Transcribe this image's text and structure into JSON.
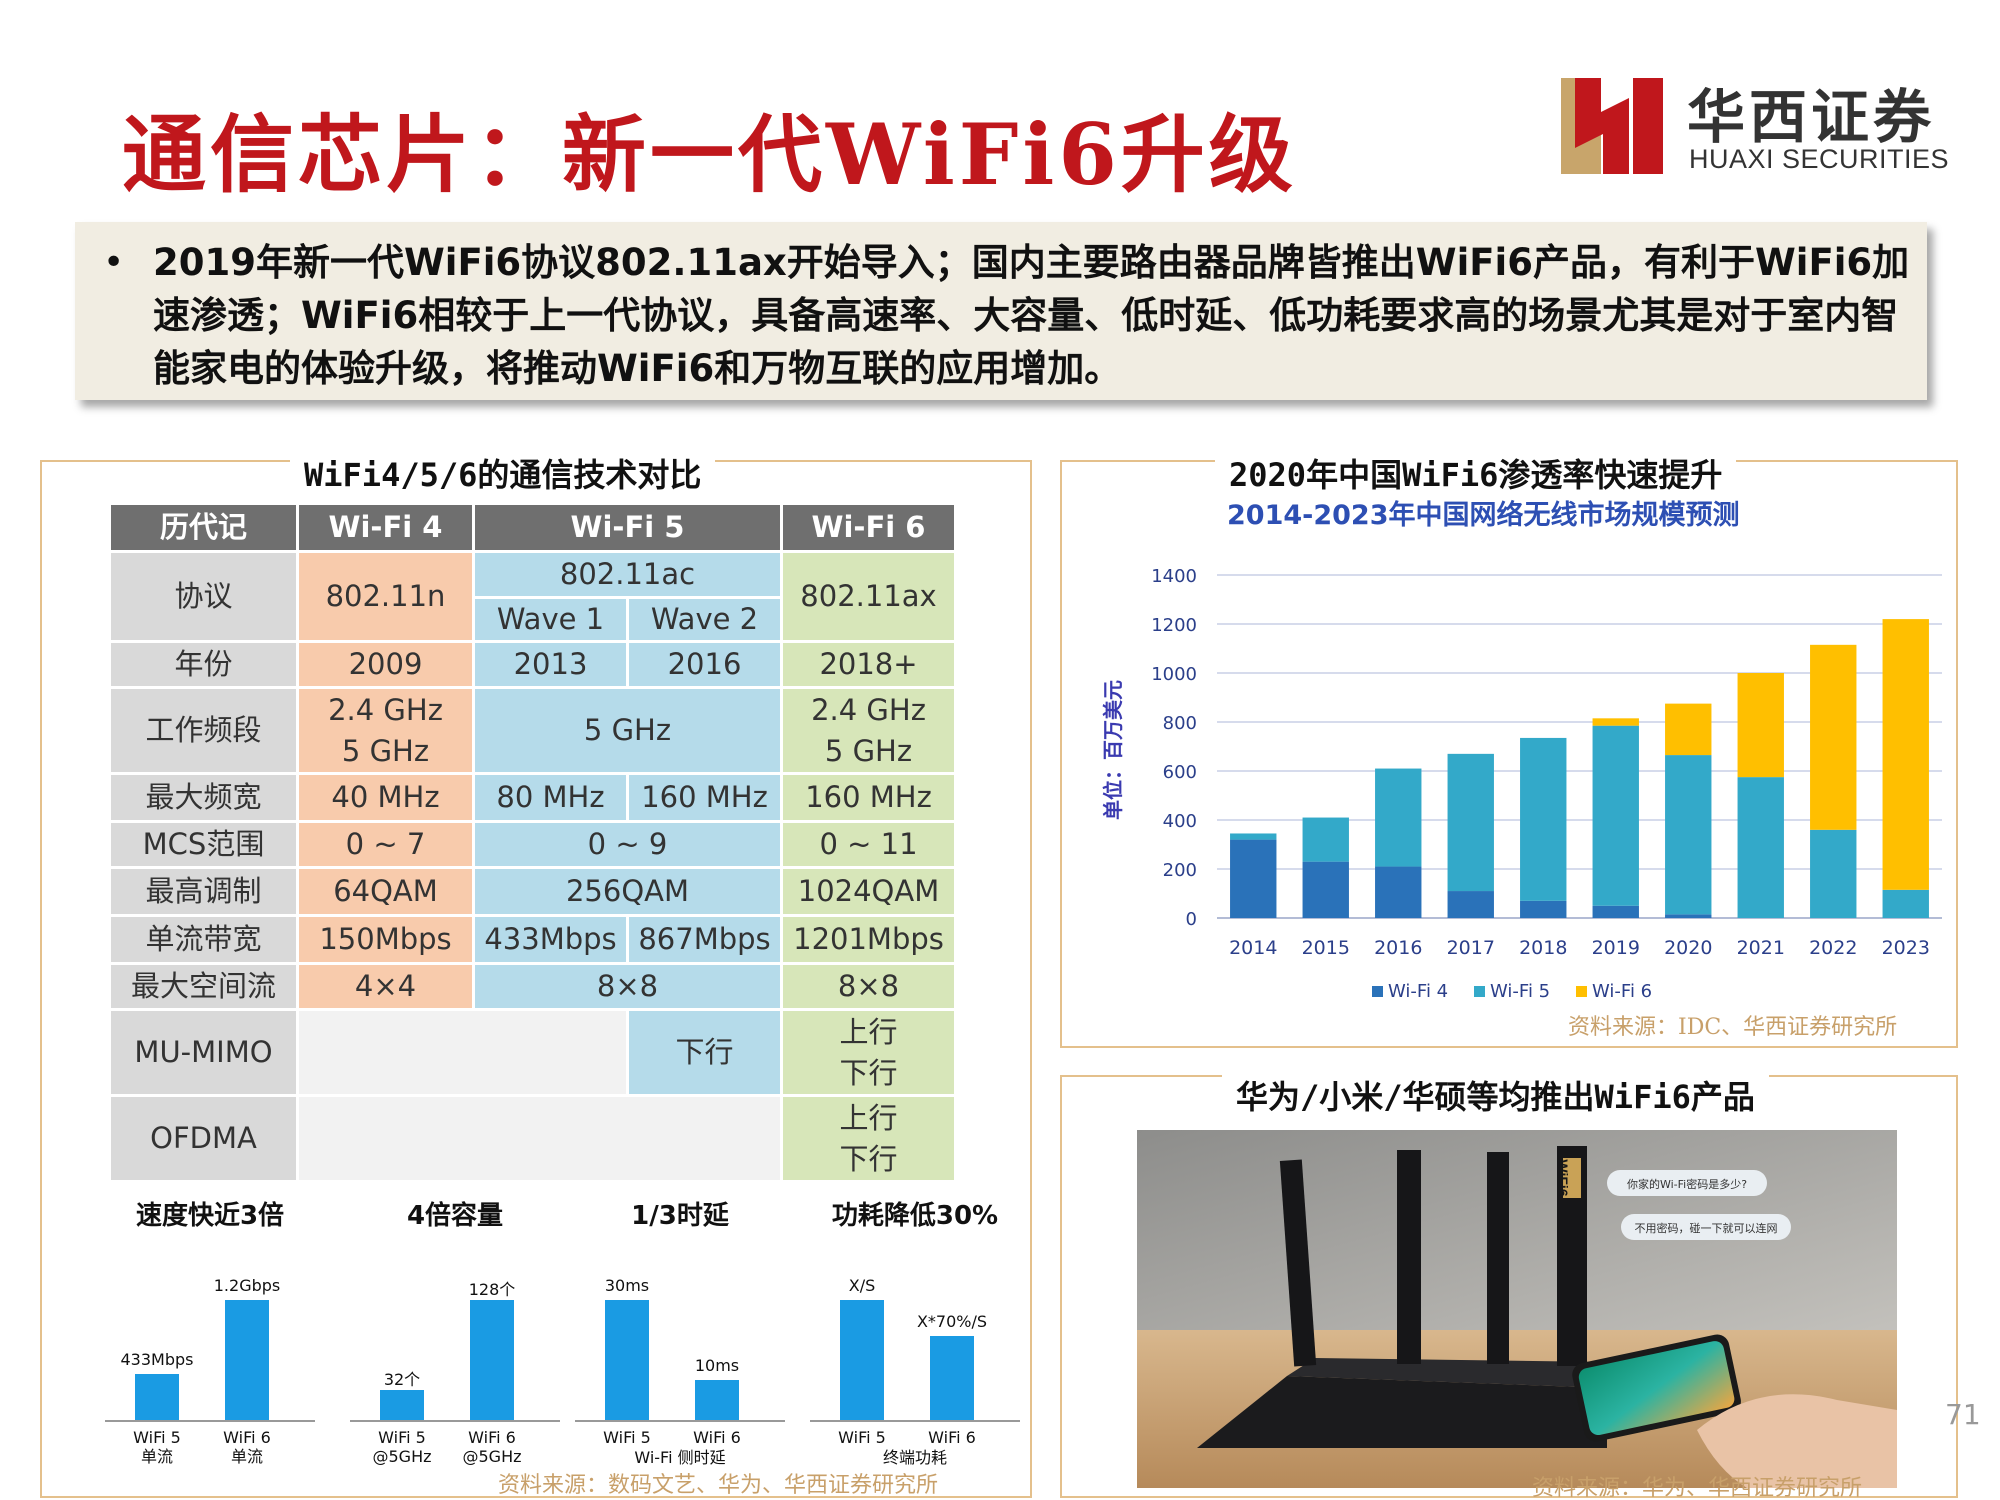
{
  "title": "通信芯片：新一代WiFi6升级",
  "logo": {
    "cn": "华西证券",
    "en": "HUAXI SECURITIES"
  },
  "summary": "2019年新一代WiFi6协议802.11ax开始导入；国内主要路由器品牌皆推出WiFi6产品，有利于WiFi6加速渗透；WiFi6相较于上一代协议，具备高速率、大容量、低时延、低功耗要求高的场景尤其是对于室内智能家电的体验升级，将推动WiFi6和万物互联的应用增加。",
  "left_panel": {
    "title": "WiFi4/5/6的通信技术对比",
    "table": {
      "h_gen": "历代记",
      "h_w4": "Wi-Fi 4",
      "h_w5": "Wi-Fi 5",
      "h_w6": "Wi-Fi 6",
      "r_proto": "协议",
      "proto_w4": "802.11n",
      "proto_w5": "802.11ac",
      "proto_w6": "802.11ax",
      "wave1": "Wave 1",
      "wave2": "Wave 2",
      "r_year": "年份",
      "year_w4": "2009",
      "year_w5a": "2013",
      "year_w5b": "2016",
      "year_w6": "2018+",
      "r_band": "工作频段",
      "band_24": "2.4 GHz",
      "band_5": "5 GHz",
      "band_w5": "5 GHz",
      "r_bw": "最大频宽",
      "bw_w4": "40 MHz",
      "bw_w5a": "80 MHz",
      "bw_w5b": "160 MHz",
      "bw_w6": "160 MHz",
      "r_mcs": "MCS范围",
      "mcs_w4": "0 ~ 7",
      "mcs_w5": "0 ~ 9",
      "mcs_w6": "0 ~ 11",
      "r_mod": "最高调制",
      "mod_w4": "64QAM",
      "mod_w5": "256QAM",
      "mod_w6": "1024QAM",
      "r_rate": "单流带宽",
      "rate_w4": "150Mbps",
      "rate_w5a": "433Mbps",
      "rate_w5b": "867Mbps",
      "rate_w6": "1201Mbps",
      "r_ss": "最大空间流",
      "ss_w4": "4×4",
      "ss_w5": "8×8",
      "ss_w6": "8×8",
      "r_mimo": "MU-MIMO",
      "down": "下行",
      "up": "上行",
      "r_ofdma": "OFDMA"
    },
    "minis": [
      {
        "title": "速度快近3倍",
        "left_val": "433Mbps",
        "right_val": "1.2Gbps",
        "left_label": "WiFi 5\n单流",
        "right_label": "WiFi 6\n单流",
        "left_frac": 0.38,
        "right_frac": 1.0
      },
      {
        "title": "4倍容量",
        "left_val": "32个",
        "right_val": "128个",
        "left_label": "WiFi 5\n@5GHz",
        "right_label": "WiFi 6\n@5GHz",
        "left_frac": 0.25,
        "right_frac": 1.0
      },
      {
        "title": "1/3时延",
        "left_val": "30ms",
        "right_val": "10ms",
        "left_label": "WiFi 5",
        "right_label": "WiFi 6",
        "left_frac": 1.0,
        "right_frac": 0.33,
        "sub_label": "Wi-Fi 侧时延"
      },
      {
        "title": "功耗降低30%",
        "left_val": "X/S",
        "right_val": "X*70%/S",
        "left_label": "WiFi 5",
        "right_label": "WiFi 6",
        "left_frac": 1.0,
        "right_frac": 0.7,
        "sub_label": "终端功耗"
      }
    ],
    "source": "资料来源：数码文艺、华为、华西证券研究所"
  },
  "right_top": {
    "title": "2020年中国WiFi6渗透率快速提升",
    "source": "资料来源：IDC、华西证券研究所"
  },
  "chart_data": {
    "type": "bar",
    "stacked": true,
    "title": "2014-2023年中国网络无线市场规模预测",
    "ylabel": "单位：百万美元",
    "categories": [
      "2014",
      "2015",
      "2016",
      "2017",
      "2018",
      "2019",
      "2020",
      "2021",
      "2022",
      "2023"
    ],
    "ylim": [
      0,
      1400
    ],
    "yticks": [
      0,
      200,
      400,
      600,
      800,
      1000,
      1200,
      1400
    ],
    "grid": true,
    "legend": "bottom",
    "series": [
      {
        "name": "Wi-Fi 4",
        "color": "#2a72b9",
        "values": [
          320,
          230,
          210,
          110,
          70,
          50,
          15,
          0,
          0,
          0
        ]
      },
      {
        "name": "Wi-Fi 5",
        "color": "#33a9c9",
        "values": [
          25,
          180,
          400,
          560,
          665,
          735,
          650,
          575,
          360,
          115
        ]
      },
      {
        "name": "Wi-Fi 6",
        "color": "#ffbf00",
        "values": [
          0,
          0,
          0,
          0,
          0,
          30,
          210,
          425,
          755,
          1105
        ]
      }
    ]
  },
  "right_bottom": {
    "title": "华为/小米/华硕等均推出WiFi6产品",
    "router_badge": "WiFi6",
    "bubble1": "你家的Wi-Fi密码是多少?",
    "bubble2": "不用密码，碰一下就可以连网",
    "source": "资料来源：华为、华西证券研究所"
  },
  "page_number": "71"
}
